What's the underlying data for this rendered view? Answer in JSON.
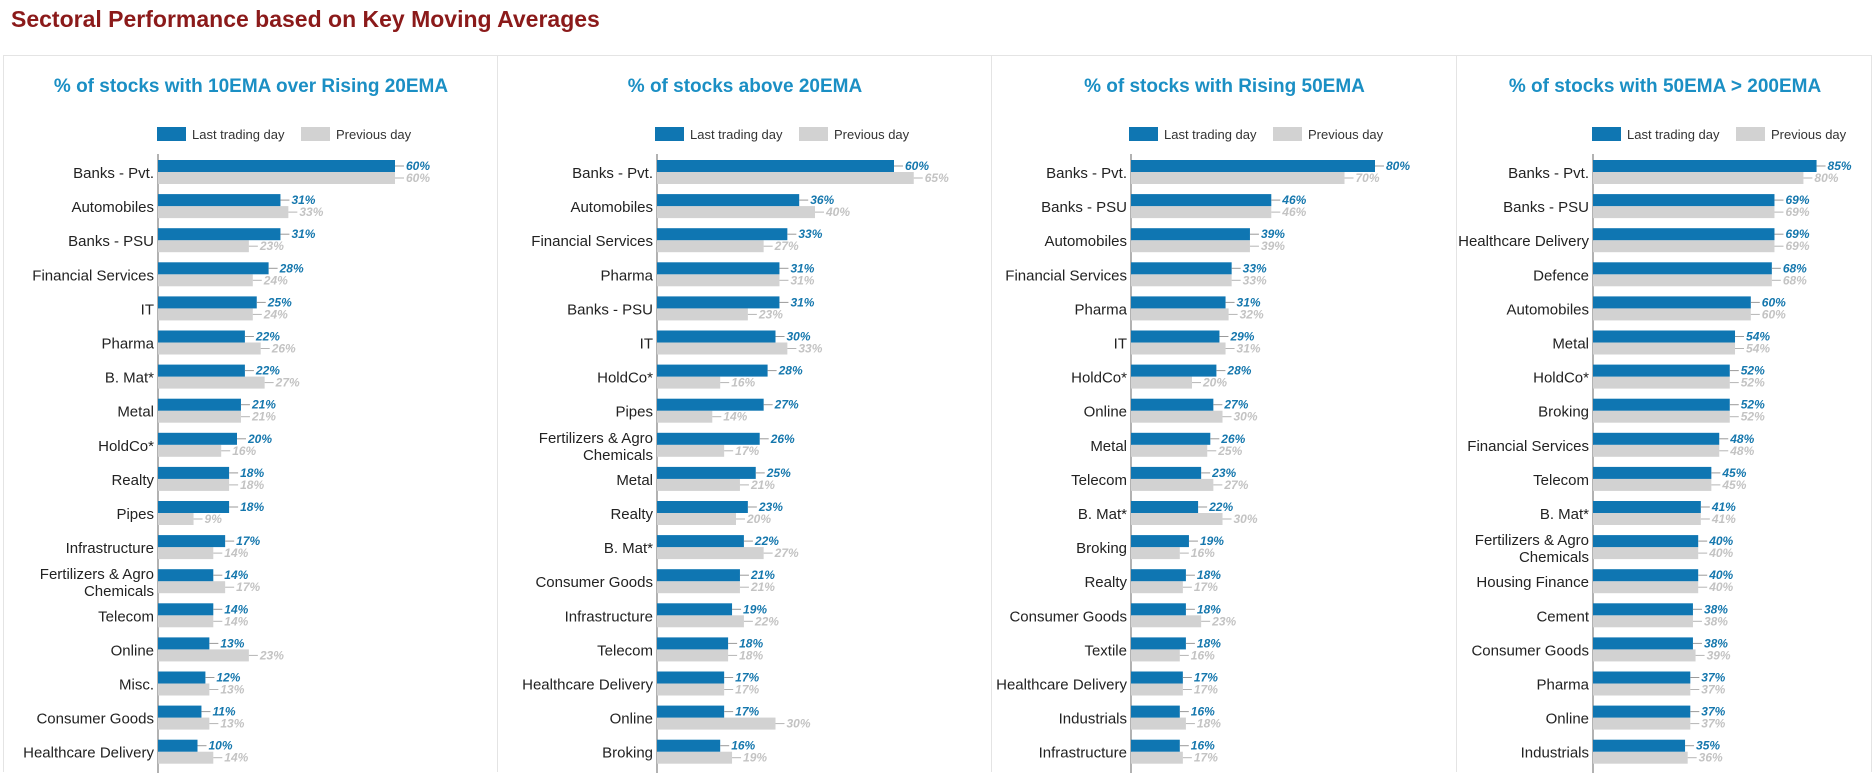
{
  "title": "Sectoral Performance based on Key Moving Averages",
  "colors": {
    "last": "#0f76b2",
    "prev": "#d2d2d2",
    "title": "#8b1a1a",
    "panel_title": "#1b8fc4"
  },
  "legend": {
    "last": "Last trading day",
    "prev": "Previous day"
  },
  "chart_data": [
    {
      "type": "bar",
      "title": "% of stocks with 10EMA over Rising 20EMA",
      "xlim": [
        0,
        100
      ],
      "categories": [
        "Banks - Pvt.",
        "Automobiles",
        "Banks - PSU",
        "Financial Services",
        "IT",
        "Pharma",
        "B. Mat*",
        "Metal",
        "HoldCo*",
        "Realty",
        "Pipes",
        "Infrastructure",
        "Fertilizers & Agro Chemicals",
        "Telecom",
        "Online",
        "Misc.",
        "Consumer Goods",
        "Healthcare Delivery"
      ],
      "series": [
        {
          "name": "Last trading day",
          "values": [
            60,
            31,
            31,
            28,
            25,
            22,
            22,
            21,
            20,
            18,
            18,
            17,
            14,
            14,
            13,
            12,
            11,
            10
          ]
        },
        {
          "name": "Previous day",
          "values": [
            60,
            33,
            23,
            24,
            24,
            26,
            27,
            21,
            16,
            18,
            9,
            14,
            17,
            14,
            23,
            13,
            13,
            14
          ]
        }
      ]
    },
    {
      "type": "bar",
      "title": "% of stocks above 20EMA",
      "xlim": [
        0,
        100
      ],
      "categories": [
        "Banks - Pvt.",
        "Automobiles",
        "Financial Services",
        "Pharma",
        "Banks - PSU",
        "IT",
        "HoldCo*",
        "Pipes",
        "Fertilizers & Agro Chemicals",
        "Metal",
        "Realty",
        "B. Mat*",
        "Consumer Goods",
        "Infrastructure",
        "Telecom",
        "Healthcare Delivery",
        "Online",
        "Broking"
      ],
      "series": [
        {
          "name": "Last trading day",
          "values": [
            60,
            36,
            33,
            31,
            31,
            30,
            28,
            27,
            26,
            25,
            23,
            22,
            21,
            19,
            18,
            17,
            17,
            16
          ]
        },
        {
          "name": "Previous day",
          "values": [
            65,
            40,
            27,
            31,
            23,
            33,
            16,
            14,
            17,
            21,
            20,
            27,
            21,
            22,
            18,
            17,
            30,
            19
          ]
        }
      ]
    },
    {
      "type": "bar",
      "title": "% of stocks with Rising 50EMA",
      "xlim": [
        0,
        100
      ],
      "categories": [
        "Banks - Pvt.",
        "Banks - PSU",
        "Automobiles",
        "Financial Services",
        "Pharma",
        "IT",
        "HoldCo*",
        "Online",
        "Metal",
        "Telecom",
        "B. Mat*",
        "Broking",
        "Realty",
        "Consumer Goods",
        "Textile",
        "Healthcare Delivery",
        "Industrials",
        "Infrastructure"
      ],
      "series": [
        {
          "name": "Last trading day",
          "values": [
            80,
            46,
            39,
            33,
            31,
            29,
            28,
            27,
            26,
            23,
            22,
            19,
            18,
            18,
            18,
            17,
            16,
            16
          ]
        },
        {
          "name": "Previous day",
          "values": [
            70,
            46,
            39,
            33,
            32,
            31,
            20,
            30,
            25,
            27,
            30,
            16,
            17,
            23,
            16,
            17,
            18,
            17
          ]
        }
      ]
    },
    {
      "type": "bar",
      "title": "% of stocks with 50EMA > 200EMA",
      "xlim": [
        0,
        100
      ],
      "categories": [
        "Banks - Pvt.",
        "Banks - PSU",
        "Healthcare Delivery",
        "Defence",
        "Automobiles",
        "Metal",
        "HoldCo*",
        "Broking",
        "Financial Services",
        "Telecom",
        "B. Mat*",
        "Fertilizers & Agro Chemicals",
        "Housing Finance",
        "Cement",
        "Consumer Goods",
        "Pharma",
        "Online",
        "Industrials"
      ],
      "series": [
        {
          "name": "Last trading day",
          "values": [
            85,
            69,
            69,
            68,
            60,
            54,
            52,
            52,
            48,
            45,
            41,
            40,
            40,
            38,
            38,
            37,
            37,
            35
          ]
        },
        {
          "name": "Previous day",
          "values": [
            80,
            69,
            69,
            68,
            60,
            54,
            52,
            52,
            48,
            45,
            41,
            40,
            40,
            38,
            39,
            37,
            37,
            36
          ]
        }
      ]
    }
  ]
}
